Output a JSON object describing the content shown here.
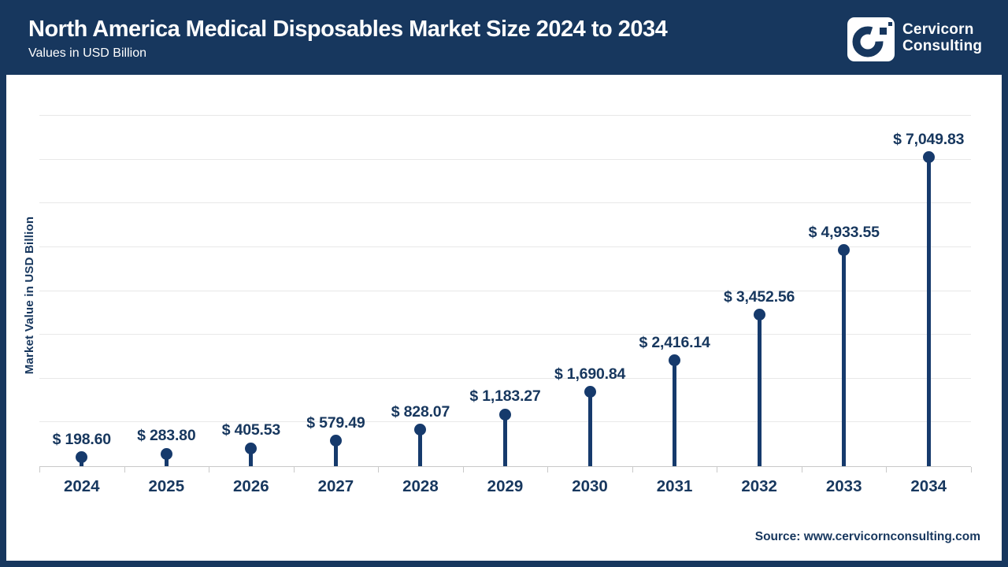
{
  "header": {
    "title": "North America Medical Disposables Market Size 2024 to 2034",
    "subtitle": "Values in USD Billion",
    "logo": {
      "line1": "Cervicorn",
      "line2": "Consulting"
    }
  },
  "chart_data": {
    "type": "bar",
    "variant": "lollipop",
    "title": "North America Medical Disposables Market Size 2024 to 2034",
    "subtitle": "Values in USD Billion",
    "xlabel": "",
    "ylabel": "Market Value in USD Billion",
    "categories": [
      "2024",
      "2025",
      "2026",
      "2027",
      "2028",
      "2029",
      "2030",
      "2031",
      "2032",
      "2033",
      "2034"
    ],
    "values": [
      198.6,
      283.8,
      405.53,
      579.49,
      828.07,
      1183.27,
      1690.84,
      2416.14,
      3452.56,
      4933.55,
      7049.83
    ],
    "value_labels": [
      "$ 198.60",
      "$ 283.80",
      "$ 405.53",
      "$ 579.49",
      "$ 828.07",
      "$ 1,183.27",
      "$ 1,690.84",
      "$ 2,416.14",
      "$ 3,452.56",
      "$ 4,933.55",
      "$ 7,049.83"
    ],
    "ylim": [
      0,
      8000
    ],
    "grid_interval": 1000,
    "grid": "horizontal-only",
    "y_tick_labels_shown": false,
    "legend": "none"
  },
  "footer": {
    "source": "Source: www.cervicornconsulting.com"
  },
  "colors": {
    "header_bg": "#17375E",
    "frame_border": "#17375E",
    "marker": "#163A6C",
    "label_text": "#17375E",
    "gridline": "#E8E8E8",
    "axis_line": "#C9C9C9",
    "background": "#FFFFFF",
    "title_text": "#FFFFFF"
  }
}
